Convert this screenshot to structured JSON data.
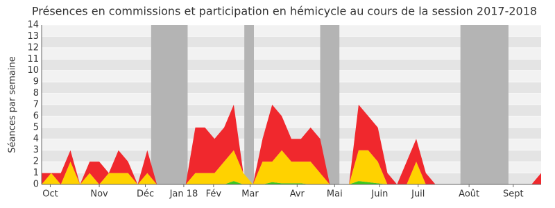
{
  "chart_data": {
    "type": "stacked-area",
    "title": "Présences en commissions et participation en hémicycle au cours de la session 2017-2018",
    "y_label": "Séances par semaine",
    "x": [
      0,
      1,
      2,
      3,
      4,
      5,
      6,
      7,
      8,
      9,
      10,
      11,
      12,
      13,
      14,
      15,
      16,
      17,
      18,
      19,
      20,
      21,
      22,
      23,
      24,
      25,
      26,
      27,
      28,
      29,
      30,
      31,
      32,
      33,
      34,
      35,
      36,
      37,
      38,
      39,
      40,
      41,
      42,
      43,
      44,
      45,
      46,
      47,
      48,
      49,
      50,
      51,
      52
    ],
    "series": [
      {
        "name": "green",
        "color": "#3cc81e",
        "values": [
          0,
          0,
          0,
          0,
          0,
          0,
          0,
          0,
          0,
          0,
          0,
          0,
          0,
          0,
          0,
          0,
          0,
          0,
          0,
          0,
          0.3,
          0,
          0,
          0,
          0.2,
          0.1,
          0.1,
          0.1,
          0,
          0,
          0,
          0,
          0,
          0.3,
          0.2,
          0.1,
          0,
          0,
          0,
          0,
          0,
          0,
          0,
          0,
          0,
          0,
          0,
          0,
          0,
          0,
          0,
          0,
          0
        ]
      },
      {
        "name": "yellow",
        "color": "#ffd200",
        "values": [
          0,
          1,
          0,
          2,
          0,
          1,
          0,
          1,
          1,
          1,
          0,
          1,
          0,
          0,
          0,
          0,
          1,
          1,
          1,
          2,
          2.7,
          1,
          0,
          2,
          1.8,
          2.9,
          1.9,
          1.9,
          2,
          1,
          0,
          0,
          0,
          2.7,
          2.8,
          1.9,
          0,
          0,
          0,
          2,
          0,
          0,
          0,
          0,
          0,
          0,
          0,
          0,
          0,
          0,
          0,
          0,
          0
        ]
      },
      {
        "name": "red",
        "color": "#f0282d",
        "values": [
          1,
          0,
          1,
          1,
          0,
          1,
          2,
          0,
          2,
          1,
          0,
          2,
          0,
          0,
          0,
          0,
          4,
          4,
          3,
          3,
          4,
          0,
          0,
          2,
          5,
          3,
          2,
          2,
          3,
          3,
          0,
          0,
          0,
          4,
          3,
          3,
          1,
          0,
          2,
          2,
          1,
          0,
          0,
          0,
          0,
          0,
          0,
          0,
          0,
          0,
          0,
          0,
          1
        ]
      }
    ],
    "xlim": [
      0,
      52
    ],
    "xticks": [
      {
        "value": 0.9,
        "label": "Oct"
      },
      {
        "value": 6,
        "label": "Nov"
      },
      {
        "value": 10.8,
        "label": "Déc"
      },
      {
        "value": 14.8,
        "label": "Jan 18"
      },
      {
        "value": 17.9,
        "label": "Fév"
      },
      {
        "value": 21.7,
        "label": "Mar"
      },
      {
        "value": 26.6,
        "label": "Avr"
      },
      {
        "value": 30.5,
        "label": "Mai"
      },
      {
        "value": 35.2,
        "label": "Juin"
      },
      {
        "value": 39.2,
        "label": "Juil"
      },
      {
        "value": 44.5,
        "label": "Août"
      },
      {
        "value": 49.1,
        "label": "Sept"
      }
    ],
    "ylim": [
      0,
      14
    ],
    "yticks": [
      0,
      1,
      2,
      3,
      4,
      5,
      6,
      7,
      8,
      9,
      10,
      11,
      12,
      13,
      14
    ],
    "shaded_ranges": [
      [
        11.4,
        15.2
      ],
      [
        21.1,
        22.1
      ],
      [
        29,
        31
      ],
      [
        43.6,
        48.6
      ]
    ],
    "grid": true
  }
}
